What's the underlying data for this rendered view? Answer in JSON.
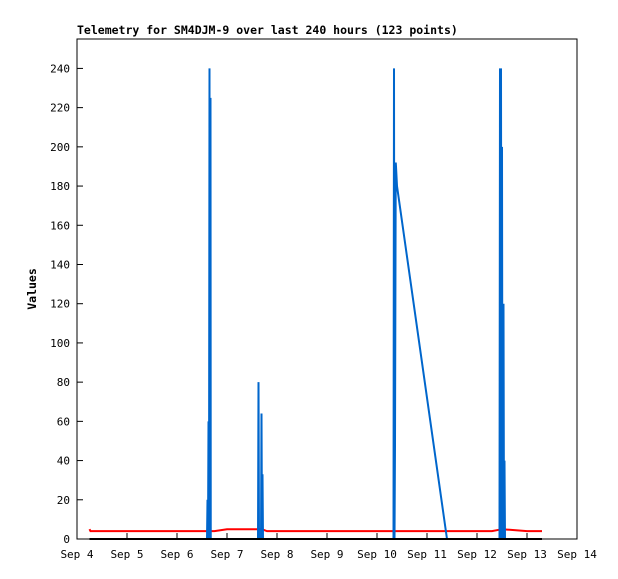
{
  "chart_data": {
    "type": "line",
    "title": "Telemetry for SM4DJM-9 over last 240 hours (123 points)",
    "xlabel": "",
    "ylabel": "Values",
    "x_ticks": [
      "Sep 4",
      "Sep 5",
      "Sep 6",
      "Sep 7",
      "Sep 8",
      "Sep 9",
      "Sep 10",
      "Sep 11",
      "Sep 12",
      "Sep 13",
      "Sep 14"
    ],
    "xlim": [
      4.0,
      14.0
    ],
    "y_ticks": [
      0,
      20,
      40,
      60,
      80,
      100,
      120,
      140,
      160,
      180,
      200,
      220,
      240
    ],
    "ylim": [
      0,
      255
    ],
    "grid": false,
    "legend": "none",
    "colors": {
      "red": "#ff0000",
      "blue": "#0066cc",
      "black": "#000000"
    },
    "series": [
      {
        "color": "#ff0000",
        "x": [
          4.25,
          4.27,
          6.6,
          6.75,
          7.0,
          7.7,
          7.8,
          10.3,
          12.3,
          12.5,
          13.0,
          13.3
        ],
        "y": [
          5,
          4,
          4,
          4,
          5,
          5,
          4,
          4,
          4,
          5,
          4,
          4
        ]
      },
      {
        "color": "#0066cc",
        "x": [
          4.25,
          6.6,
          6.61,
          6.62,
          6.63,
          6.64,
          6.65,
          6.655,
          6.66,
          6.67,
          6.675,
          6.68,
          6.69,
          6.7,
          6.72,
          7.62,
          7.63,
          7.64,
          7.65,
          7.68,
          7.69,
          7.7,
          7.71,
          7.72,
          7.73,
          10.33,
          10.34,
          10.35,
          10.36,
          10.37,
          10.375,
          10.38,
          10.39,
          10.4,
          11.4,
          11.45,
          12.45,
          12.46,
          12.47,
          12.48,
          12.49,
          12.5,
          12.51,
          12.52,
          12.53,
          12.54,
          12.55,
          12.56,
          12.58
        ],
        "y": [
          0,
          0,
          20,
          0,
          60,
          0,
          240,
          0,
          0,
          225,
          0,
          0,
          0,
          0,
          0,
          0,
          80,
          0,
          0,
          0,
          64,
          0,
          33,
          0,
          0,
          0,
          240,
          0,
          48,
          145,
          192,
          190,
          185,
          180,
          0,
          0,
          0,
          240,
          0,
          240,
          0,
          200,
          0,
          0,
          120,
          0,
          40,
          0,
          0
        ]
      },
      {
        "color": "#000000",
        "x": [
          4.25,
          13.3
        ],
        "y": [
          0,
          0
        ]
      }
    ]
  }
}
